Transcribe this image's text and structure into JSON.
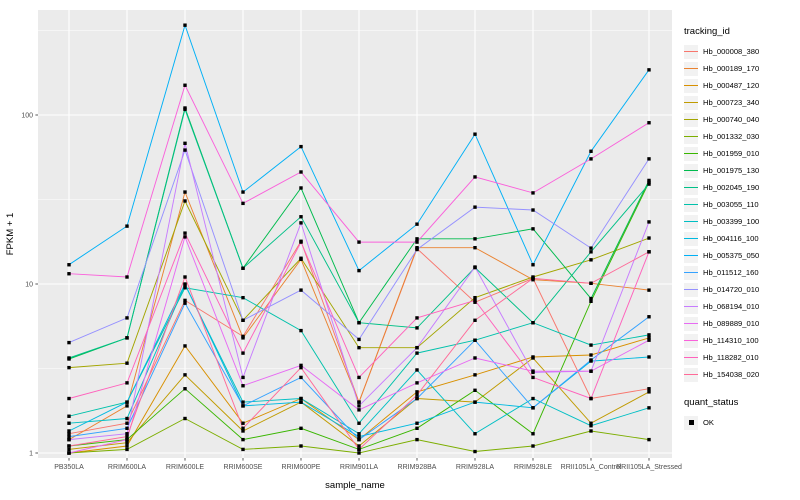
{
  "chart": {
    "ylabel": "FPKM + 1",
    "xlabel": "sample_name",
    "legend_title": "tracking_id",
    "legend2_title": "quant_status",
    "legend2_item": "OK"
  },
  "chart_data": {
    "type": "line",
    "title": "",
    "xlabel": "sample_name",
    "ylabel": "FPKM + 1",
    "yscale": "log10",
    "yticks": [
      1,
      10,
      100
    ],
    "ytick_labels": [
      "1",
      "10",
      "100"
    ],
    "ylim": [
      1,
      420
    ],
    "grid": "white on grey panel, major 1/10/100 plus half-decade minors",
    "panel_color": "#EBEBEB",
    "grid_color": "#FFFFFF",
    "marker": "black-square (quant_status OK)",
    "legend_position": "right",
    "legend_title": "tracking_id",
    "legend2_title": "quant_status",
    "legend2_items": [
      "OK"
    ],
    "categories": [
      "PB350LA",
      "RRIM600LA",
      "RRIM600LE",
      "RRIM600SE",
      "RRIM600PE",
      "RRIM901LA",
      "RRIM928BA",
      "RRIM928LA",
      "RRIM928LE",
      "RRII105LA_Control",
      "RRII105LA_Stressed"
    ],
    "series": [
      {
        "name": "Hb_000008_380",
        "color": "#F8766D",
        "values": [
          1.3,
          1.5,
          8.0,
          4.9,
          17.9,
          2.0,
          16.2,
          7.8,
          10.8,
          2.1,
          2.4
        ]
      },
      {
        "name": "Hb_000189_170",
        "color": "#EA8331",
        "values": [
          1.2,
          1.9,
          35,
          4.8,
          14.0,
          2.0,
          16.4,
          16.4,
          10.6,
          10.1,
          9.2
        ]
      },
      {
        "name": "Hb_000487_120",
        "color": "#D89000",
        "values": [
          1.0,
          1.1,
          4.3,
          1.5,
          2.1,
          1.2,
          2.3,
          2.9,
          3.7,
          3.8,
          4.8
        ]
      },
      {
        "name": "Hb_000723_340",
        "color": "#C09B00",
        "values": [
          1.05,
          1.15,
          2.9,
          1.35,
          2.0,
          1.1,
          2.1,
          2.0,
          3.65,
          1.5,
          2.3
        ]
      },
      {
        "name": "Hb_000740_040",
        "color": "#A3A500",
        "values": [
          3.2,
          3.4,
          31,
          6.1,
          14.2,
          4.2,
          4.2,
          8.3,
          11.0,
          13.9,
          18.7
        ]
      },
      {
        "name": "Hb_001332_030",
        "color": "#7CAE00",
        "values": [
          1.0,
          1.05,
          1.6,
          1.05,
          1.1,
          1.0,
          1.2,
          1.02,
          1.1,
          1.35,
          1.2
        ]
      },
      {
        "name": "Hb_001959_010",
        "color": "#39B600",
        "values": [
          1.1,
          1.2,
          2.4,
          1.2,
          1.4,
          1.05,
          1.4,
          2.35,
          1.3,
          7.9,
          40
        ]
      },
      {
        "name": "Hb_001975_130",
        "color": "#00BB4E",
        "values": [
          3.6,
          4.8,
          110,
          12.4,
          37,
          5.9,
          18.5,
          18.5,
          21.2,
          8.2,
          41
        ]
      },
      {
        "name": "Hb_002045_190",
        "color": "#00C087",
        "values": [
          3.65,
          4.8,
          108,
          12.4,
          25,
          5.9,
          5.5,
          12.5,
          5.9,
          15.5,
          39
        ]
      },
      {
        "name": "Hb_003055_110",
        "color": "#00C1AB",
        "values": [
          1.65,
          2.0,
          9.5,
          8.3,
          5.3,
          1.5,
          3.9,
          4.65,
          5.9,
          4.35,
          5.0
        ]
      },
      {
        "name": "Hb_003399_100",
        "color": "#00BFC4",
        "values": [
          1.5,
          1.6,
          9.9,
          2.0,
          2.1,
          1.3,
          3.1,
          1.3,
          2.1,
          1.45,
          1.85
        ]
      },
      {
        "name": "Hb_004116_100",
        "color": "#00BAE0",
        "values": [
          1.35,
          2.0,
          10,
          1.9,
          2.0,
          1.25,
          1.5,
          2.0,
          1.85,
          3.5,
          3.7
        ]
      },
      {
        "name": "Hb_005375_050",
        "color": "#00B0F6",
        "values": [
          13,
          22,
          340,
          35,
          65,
          12,
          22.6,
          77,
          13,
          61,
          185
        ]
      },
      {
        "name": "Hb_011512_160",
        "color": "#35A2FF",
        "values": [
          1.25,
          1.4,
          7.7,
          1.9,
          2.8,
          1.2,
          2.1,
          4.65,
          1.85,
          3.55,
          6.4
        ]
      },
      {
        "name": "Hb_014720_010",
        "color": "#9590FF",
        "values": [
          4.5,
          6.3,
          62,
          6.1,
          9.2,
          4.7,
          16,
          28.5,
          27.4,
          16.3,
          55
        ]
      },
      {
        "name": "Hb_068194_010",
        "color": "#C77CFF",
        "values": [
          1.2,
          1.3,
          68,
          2.8,
          23,
          1.9,
          4.2,
          12.6,
          3.0,
          3.05,
          23.3
        ]
      },
      {
        "name": "Hb_089889_010",
        "color": "#E76BF3",
        "values": [
          1.0,
          1.2,
          19,
          2.5,
          3.3,
          1.8,
          2.6,
          3.65,
          3.05,
          3.05,
          4.65
        ]
      },
      {
        "name": "Hb_114310_100",
        "color": "#FA62DB",
        "values": [
          11.5,
          11,
          150,
          30,
          46,
          17.7,
          17.7,
          43,
          34.6,
          55,
          90
        ]
      },
      {
        "name": "Hb_118282_010",
        "color": "#FF62BC",
        "values": [
          2.1,
          2.6,
          20,
          3.9,
          17.7,
          2.8,
          6.3,
          8.0,
          2.8,
          2.1,
          15.5
        ]
      },
      {
        "name": "Hb_154038_020",
        "color": "#FF6A98",
        "values": [
          1.1,
          1.25,
          11,
          1.4,
          3.2,
          1.05,
          2.2,
          6.1,
          10.8,
          10.1,
          15.5
        ]
      }
    ]
  }
}
